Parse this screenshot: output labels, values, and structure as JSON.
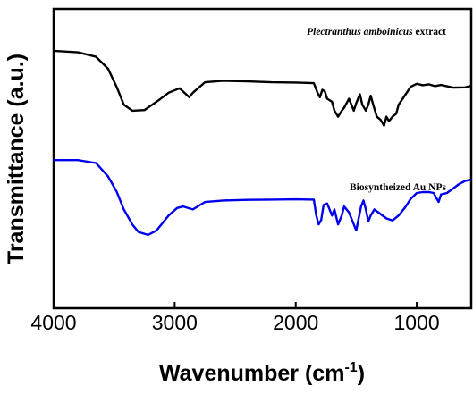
{
  "chart_data": {
    "type": "line",
    "title": "",
    "xlabel": "Wavenumber (cm",
    "xlabel_sup": "-1",
    "xlabel_close": ")",
    "ylabel": "Transmittance (a.u.)",
    "xlim": [
      4000,
      550
    ],
    "x_reversed": true,
    "y_ticks_shown": false,
    "ylim": [
      0,
      100
    ],
    "grid": false,
    "xticks": [
      4000,
      3000,
      2000,
      1000
    ],
    "xtick_labels": [
      "4000",
      "3000",
      "2000",
      "1000"
    ],
    "series": [
      {
        "name_italic": "Plectranthus amboinicus",
        "name_rest": " extract",
        "color": "#000000",
        "points": [
          [
            4000,
            86
          ],
          [
            3800,
            85.5
          ],
          [
            3650,
            84
          ],
          [
            3550,
            80
          ],
          [
            3480,
            74
          ],
          [
            3420,
            68
          ],
          [
            3350,
            66
          ],
          [
            3250,
            66.2
          ],
          [
            3150,
            69
          ],
          [
            3050,
            72
          ],
          [
            2960,
            73.5
          ],
          [
            2920,
            72
          ],
          [
            2880,
            70.5
          ],
          [
            2850,
            72
          ],
          [
            2750,
            75.5
          ],
          [
            2600,
            76
          ],
          [
            2400,
            75.8
          ],
          [
            2200,
            75.5
          ],
          [
            2000,
            75.4
          ],
          [
            1850,
            75.2
          ],
          [
            1820,
            72
          ],
          [
            1800,
            70.5
          ],
          [
            1780,
            73
          ],
          [
            1760,
            72.5
          ],
          [
            1740,
            70
          ],
          [
            1700,
            69
          ],
          [
            1680,
            66
          ],
          [
            1650,
            64
          ],
          [
            1620,
            66
          ],
          [
            1600,
            67
          ],
          [
            1560,
            70
          ],
          [
            1520,
            66
          ],
          [
            1500,
            68.5
          ],
          [
            1470,
            71.5
          ],
          [
            1450,
            68
          ],
          [
            1420,
            66
          ],
          [
            1400,
            68
          ],
          [
            1380,
            71
          ],
          [
            1360,
            68
          ],
          [
            1330,
            64
          ],
          [
            1300,
            63
          ],
          [
            1270,
            61
          ],
          [
            1250,
            64
          ],
          [
            1230,
            62.5
          ],
          [
            1200,
            64
          ],
          [
            1170,
            65
          ],
          [
            1150,
            68
          ],
          [
            1100,
            71
          ],
          [
            1050,
            74
          ],
          [
            1000,
            75
          ],
          [
            950,
            74.5
          ],
          [
            900,
            74.8
          ],
          [
            850,
            74.2
          ],
          [
            800,
            74.6
          ],
          [
            700,
            73.7
          ],
          [
            600,
            73.8
          ],
          [
            550,
            74.3
          ]
        ]
      },
      {
        "name": "Biosyntheized Au NPs",
        "color": "#0000ee",
        "points": [
          [
            4000,
            49.5
          ],
          [
            3800,
            49.5
          ],
          [
            3650,
            48.5
          ],
          [
            3550,
            44
          ],
          [
            3480,
            39
          ],
          [
            3420,
            33
          ],
          [
            3350,
            28
          ],
          [
            3300,
            25.5
          ],
          [
            3220,
            24.5
          ],
          [
            3150,
            26
          ],
          [
            3050,
            31
          ],
          [
            2980,
            33.5
          ],
          [
            2930,
            34
          ],
          [
            2850,
            33
          ],
          [
            2750,
            35.5
          ],
          [
            2600,
            36
          ],
          [
            2400,
            36.2
          ],
          [
            2200,
            36.3
          ],
          [
            2000,
            36.4
          ],
          [
            1850,
            36.3
          ],
          [
            1830,
            31
          ],
          [
            1810,
            28
          ],
          [
            1790,
            29.5
          ],
          [
            1770,
            34.5
          ],
          [
            1740,
            35
          ],
          [
            1720,
            33
          ],
          [
            1700,
            31
          ],
          [
            1680,
            33
          ],
          [
            1650,
            28
          ],
          [
            1620,
            31
          ],
          [
            1600,
            34
          ],
          [
            1560,
            32
          ],
          [
            1540,
            30
          ],
          [
            1520,
            28
          ],
          [
            1500,
            26
          ],
          [
            1480,
            30
          ],
          [
            1460,
            34
          ],
          [
            1440,
            36
          ],
          [
            1420,
            33
          ],
          [
            1400,
            29
          ],
          [
            1380,
            31
          ],
          [
            1350,
            33
          ],
          [
            1300,
            31.5
          ],
          [
            1250,
            30
          ],
          [
            1200,
            29.3
          ],
          [
            1150,
            31
          ],
          [
            1100,
            33.5
          ],
          [
            1050,
            36.5
          ],
          [
            1000,
            38.5
          ],
          [
            950,
            38.8
          ],
          [
            900,
            38.8
          ],
          [
            860,
            38.5
          ],
          [
            840,
            37
          ],
          [
            820,
            35.5
          ],
          [
            800,
            38
          ],
          [
            750,
            38.5
          ],
          [
            700,
            40
          ],
          [
            650,
            41.5
          ],
          [
            600,
            42.5
          ],
          [
            550,
            43
          ]
        ]
      }
    ]
  }
}
